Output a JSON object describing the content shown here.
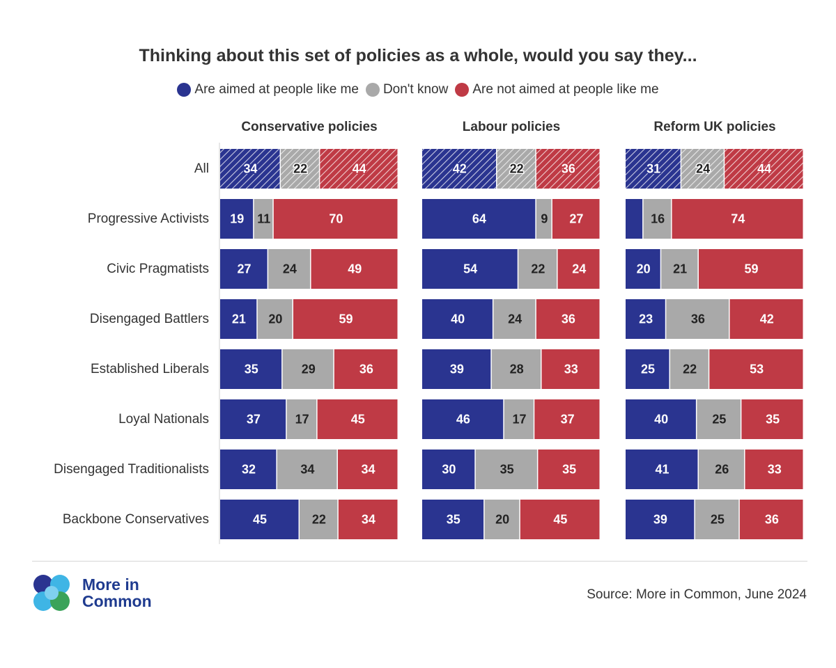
{
  "colors": {
    "aimed": "#2a3490",
    "dont_know": "#a9a9a9",
    "not_aimed": "#bf3a45"
  },
  "legend": {
    "aimed": "Are aimed at people like me",
    "dont_know": "Don't know",
    "not_aimed": "Are not aimed at people like me"
  },
  "footer": {
    "logo_text": "More in Common",
    "source": "Source: More in Common, June 2024"
  },
  "chart_data": {
    "type": "bar",
    "orientation": "horizontal",
    "stacked": true,
    "title": "Thinking about this set of policies as a whole, would you say they...",
    "categories": [
      "All",
      "Progressive Activists",
      "Civic Pragmatists",
      "Disengaged Battlers",
      "Established Liberals",
      "Loyal Nationals",
      "Disengaged Traditionalists",
      "Backbone Conservatives"
    ],
    "series_names": [
      "Are aimed at people like me",
      "Don't know",
      "Are not aimed at people like me"
    ],
    "panels": [
      {
        "title": "Conservative policies",
        "values": [
          [
            34,
            22,
            44
          ],
          [
            19,
            11,
            70
          ],
          [
            27,
            24,
            49
          ],
          [
            21,
            20,
            59
          ],
          [
            35,
            29,
            36
          ],
          [
            37,
            17,
            45
          ],
          [
            32,
            34,
            34
          ],
          [
            45,
            22,
            34
          ]
        ]
      },
      {
        "title": "Labour policies",
        "values": [
          [
            42,
            22,
            36
          ],
          [
            64,
            9,
            27
          ],
          [
            54,
            22,
            24
          ],
          [
            40,
            24,
            36
          ],
          [
            39,
            28,
            33
          ],
          [
            46,
            17,
            37
          ],
          [
            30,
            35,
            35
          ],
          [
            35,
            20,
            45
          ]
        ]
      },
      {
        "title": "Reform UK policies",
        "values": [
          [
            31,
            24,
            44
          ],
          [
            10,
            16,
            74
          ],
          [
            20,
            21,
            59
          ],
          [
            23,
            36,
            42
          ],
          [
            25,
            22,
            53
          ],
          [
            40,
            25,
            35
          ],
          [
            41,
            26,
            33
          ],
          [
            39,
            25,
            36
          ]
        ],
        "hidden_labels": [
          [
            1,
            0
          ]
        ]
      }
    ],
    "hatched_rows": [
      0
    ],
    "legend_position": "top"
  }
}
